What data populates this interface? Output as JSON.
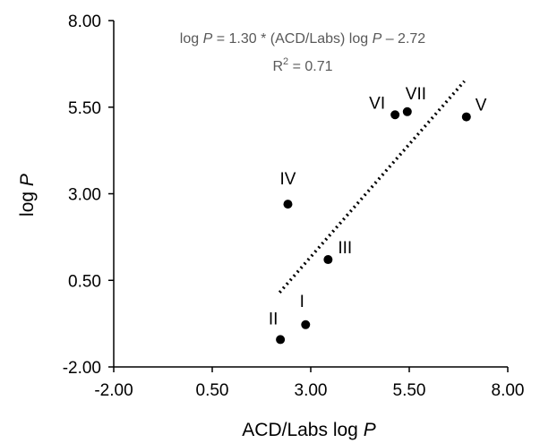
{
  "chart_data": {
    "type": "scatter",
    "xlabel_text": "ACD/Labs log ",
    "xlabel_var": "P",
    "ylabel_text": "log ",
    "ylabel_var": "P",
    "xlim": [
      -2.0,
      8.0
    ],
    "ylim": [
      -2.0,
      8.0
    ],
    "x_ticks": [
      -2.0,
      0.5,
      3.0,
      5.5,
      8.0
    ],
    "y_ticks": [
      -2.0,
      0.5,
      3.0,
      5.5,
      8.0
    ],
    "x_tick_labels": [
      "-2.00",
      "0.50",
      "3.00",
      "5.50",
      "8.00"
    ],
    "y_tick_labels": [
      "-2.00",
      "0.50",
      "3.00",
      "5.50",
      "8.00"
    ],
    "grid": false,
    "points": [
      {
        "label": "I",
        "x": 2.87,
        "y": -0.78
      },
      {
        "label": "II",
        "x": 2.23,
        "y": -1.21
      },
      {
        "label": "III",
        "x": 3.44,
        "y": 1.1
      },
      {
        "label": "IV",
        "x": 2.42,
        "y": 2.7
      },
      {
        "label": "V",
        "x": 6.95,
        "y": 5.22
      },
      {
        "label": "VI",
        "x": 5.14,
        "y": 5.28
      },
      {
        "label": "VII",
        "x": 5.45,
        "y": 5.37
      }
    ],
    "trendline": {
      "style": "dotted",
      "x": [
        2.21,
        6.9
      ],
      "y": [
        0.15,
        6.25
      ]
    },
    "equation": {
      "line1_parts": [
        "log ",
        "P",
        " = 1.30 * (ACD/Labs) log ",
        "P",
        " – 2.72"
      ],
      "line2_text": "R",
      "line2_sup": "2",
      "line2_rest": " = 0.71"
    }
  }
}
